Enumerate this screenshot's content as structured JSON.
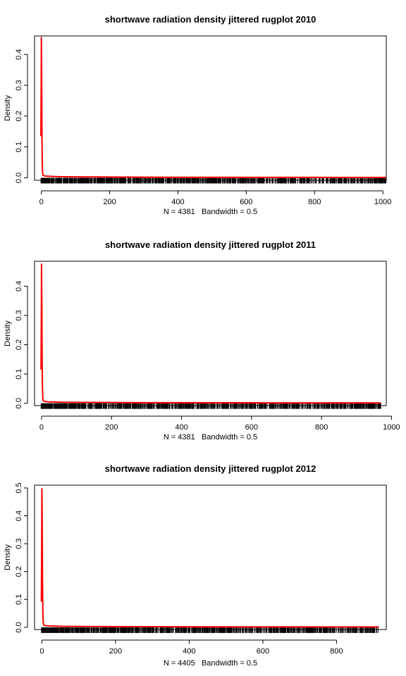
{
  "chart_data": [
    {
      "type": "line",
      "title": "shortwave radiation density jittered rugplot 2010",
      "xlabel": "N = 4381   Bandwidth = 0.5",
      "ylabel": "Density",
      "xlim": [
        -20,
        1010
      ],
      "ylim": [
        -0.008,
        0.46
      ],
      "xticks": [
        0,
        200,
        400,
        600,
        800,
        1000
      ],
      "xtick_labels": [
        "0",
        "200",
        "400",
        "600",
        "800",
        "1000"
      ],
      "yticks": [
        0.0,
        0.1,
        0.2,
        0.3,
        0.4
      ],
      "ytick_labels": [
        "0.0",
        "0.1",
        "0.2",
        "0.3",
        "0.4"
      ],
      "line_color": "#ff0000",
      "rug": true,
      "rug_max": 1010,
      "series": [
        {
          "x": [
            -1.5,
            -0.5,
            0,
            0.8,
            1.5,
            2.5,
            3.5,
            5,
            10,
            20,
            40,
            60,
            100,
            150,
            200,
            300,
            400,
            500,
            600,
            700,
            800,
            900,
            960,
            1010
          ],
          "y": [
            0.135,
            0.3,
            0.455,
            0.35,
            0.18,
            0.06,
            0.018,
            0.008,
            0.006,
            0.005,
            0.004,
            0.0035,
            0.003,
            0.0028,
            0.0025,
            0.002,
            0.0018,
            0.0016,
            0.0015,
            0.0014,
            0.0013,
            0.0012,
            0.0011,
            0.001
          ]
        }
      ]
    },
    {
      "type": "line",
      "title": "shortwave radiation density jittered rugplot 2011",
      "xlabel": "N = 4381   Bandwidth = 0.5",
      "ylabel": "Density",
      "xlim": [
        -20,
        985
      ],
      "ylim": [
        -0.008,
        0.485
      ],
      "xticks": [
        0,
        200,
        400,
        600,
        800,
        1000
      ],
      "xtick_labels": [
        "0",
        "200",
        "400",
        "600",
        "800",
        "1000"
      ],
      "yticks": [
        0.0,
        0.1,
        0.2,
        0.3,
        0.4
      ],
      "ytick_labels": [
        "0.0",
        "0.1",
        "0.2",
        "0.3",
        "0.4"
      ],
      "line_color": "#ff0000",
      "rug": true,
      "rug_max": 970,
      "series": [
        {
          "x": [
            -1.5,
            -0.5,
            0,
            0.8,
            1.5,
            2.5,
            3.5,
            5,
            10,
            20,
            40,
            60,
            100,
            150,
            200,
            300,
            400,
            500,
            600,
            700,
            800,
            900,
            970
          ],
          "y": [
            0.115,
            0.3,
            0.475,
            0.36,
            0.18,
            0.06,
            0.018,
            0.008,
            0.006,
            0.005,
            0.004,
            0.0035,
            0.003,
            0.0028,
            0.0025,
            0.002,
            0.0018,
            0.0016,
            0.0015,
            0.0014,
            0.0013,
            0.0012,
            0.0011
          ]
        }
      ]
    },
    {
      "type": "line",
      "title": "shortwave radiation density jittered rugplot 2012",
      "xlabel": "N = 4405   Bandwidth = 0.5",
      "ylabel": "Density",
      "xlim": [
        -20,
        935
      ],
      "ylim": [
        -0.008,
        0.51
      ],
      "xticks": [
        0,
        200,
        400,
        600,
        800
      ],
      "xtick_labels": [
        "0",
        "200",
        "400",
        "600",
        "800"
      ],
      "yticks": [
        0.0,
        0.1,
        0.2,
        0.3,
        0.4,
        0.5
      ],
      "ytick_labels": [
        "0.0",
        "0.1",
        "0.2",
        "0.3",
        "0.4",
        "0.5"
      ],
      "line_color": "#ff0000",
      "rug": true,
      "rug_max": 915,
      "series": [
        {
          "x": [
            -1.5,
            -0.5,
            0,
            0.8,
            1.5,
            2.5,
            3.5,
            5,
            10,
            20,
            40,
            60,
            100,
            150,
            200,
            300,
            400,
            500,
            600,
            700,
            800,
            915
          ],
          "y": [
            0.092,
            0.3,
            0.497,
            0.37,
            0.18,
            0.06,
            0.018,
            0.008,
            0.006,
            0.005,
            0.004,
            0.0035,
            0.003,
            0.0028,
            0.0025,
            0.002,
            0.0018,
            0.0016,
            0.0015,
            0.0014,
            0.0013,
            0.0012
          ]
        }
      ]
    }
  ]
}
